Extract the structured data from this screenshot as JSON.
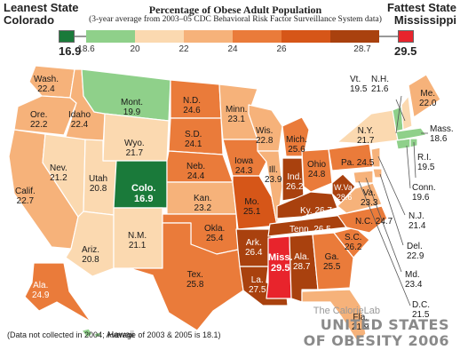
{
  "header": {
    "leanest_label": "Leanest State",
    "leanest_state": "Colorado",
    "leanest_value": "16.9",
    "fattest_label": "Fattest State",
    "fattest_state": "Mississippi",
    "fattest_value": "29.5",
    "title": "Percentage of Obese Adult Population",
    "subtitle": "(3-year average from 2003–05 CDC Behavioral Risk Factor Surveillance System data)"
  },
  "legend": {
    "ticks": [
      "18.6",
      "20",
      "22",
      "24",
      "26",
      "28.7"
    ],
    "colors": [
      "#8fd08a",
      "#fbd9b0",
      "#f6b27a",
      "#ea7b3a",
      "#d65618",
      "#a9410e"
    ],
    "leanest_color": "#1a7a3a",
    "fattest_color": "#e8242c"
  },
  "states": {
    "wa": {
      "name": "Wash.",
      "value": "22.4"
    },
    "or": {
      "name": "Ore.",
      "value": "22.2"
    },
    "ca": {
      "name": "Calif.",
      "value": "22.7"
    },
    "id": {
      "name": "Idaho",
      "value": "22.4"
    },
    "nv": {
      "name": "Nev.",
      "value": "21.2"
    },
    "ut": {
      "name": "Utah",
      "value": "20.8"
    },
    "az": {
      "name": "Ariz.",
      "value": "20.8"
    },
    "mt": {
      "name": "Mont.",
      "value": "19.9"
    },
    "wy": {
      "name": "Wyo.",
      "value": "21.7"
    },
    "co": {
      "name": "Colo.",
      "value": "16.9"
    },
    "nm": {
      "name": "N.M.",
      "value": "21.1"
    },
    "nd": {
      "name": "N.D.",
      "value": "24.6"
    },
    "sd": {
      "name": "S.D.",
      "value": "24.1"
    },
    "ne": {
      "name": "Neb.",
      "value": "24.4"
    },
    "ks": {
      "name": "Kan.",
      "value": "23.2"
    },
    "ok": {
      "name": "Okla.",
      "value": "25.4"
    },
    "tx": {
      "name": "Tex.",
      "value": "25.8"
    },
    "mn": {
      "name": "Minn.",
      "value": "23.1"
    },
    "ia": {
      "name": "Iowa",
      "value": "24.3"
    },
    "mo": {
      "name": "Mo.",
      "value": "25.1"
    },
    "ar": {
      "name": "Ark.",
      "value": "26.4"
    },
    "la": {
      "name": "La.",
      "value": "27.5"
    },
    "wi": {
      "name": "Wis.",
      "value": "22.8"
    },
    "il": {
      "name": "Ill.",
      "value": "23.9"
    },
    "mi": {
      "name": "Mich.",
      "value": "25.6"
    },
    "in": {
      "name": "Ind.",
      "value": "26.2"
    },
    "oh": {
      "name": "Ohio",
      "value": "24.8"
    },
    "ky": {
      "name": "Ky.",
      "value": "26.7"
    },
    "tn": {
      "name": "Tenn.",
      "value": "26.5"
    },
    "ms": {
      "name": "Miss.",
      "value": "29.5"
    },
    "al": {
      "name": "Ala.",
      "value": "28.7"
    },
    "ga": {
      "name": "Ga.",
      "value": "25.5"
    },
    "fl": {
      "name": "Fla.",
      "value": "21.9"
    },
    "sc": {
      "name": "S.C.",
      "value": "26.2"
    },
    "nc": {
      "name": "N.C.",
      "value": "24.7"
    },
    "va": {
      "name": "Va.",
      "value": "23.3"
    },
    "wv": {
      "name": "W.Va.",
      "value": "28.6"
    },
    "pa": {
      "name": "Pa.",
      "value": "24.5"
    },
    "ny": {
      "name": "N.Y.",
      "value": "21.7"
    },
    "me": {
      "name": "Me.",
      "value": "22.0"
    },
    "vt": {
      "name": "Vt.",
      "value": "19.5"
    },
    "nh": {
      "name": "N.H.",
      "value": "21.6"
    },
    "ma": {
      "name": "Mass.",
      "value": "18.6"
    },
    "ri": {
      "name": "R.I.",
      "value": "19.5"
    },
    "ct": {
      "name": "Conn.",
      "value": "19.6"
    },
    "nj": {
      "name": "N.J.",
      "value": "21.4"
    },
    "de": {
      "name": "Del.",
      "value": "22.9"
    },
    "md": {
      "name": "Md.",
      "value": "23.4"
    },
    "dc": {
      "name": "D.C.",
      "value": "21.5"
    },
    "ak": {
      "name": "Ala.",
      "value": "24.9"
    },
    "hi": {
      "name": "Hawaii",
      "value": ""
    }
  },
  "footer": {
    "note": "(Data not collected in 2004; Average of 2003 & 2005 is 18.1)",
    "brand_small": "The CalorieLab",
    "brand_line1": "UNITED STATES",
    "brand_line2": "OF OBESITY 2006"
  }
}
